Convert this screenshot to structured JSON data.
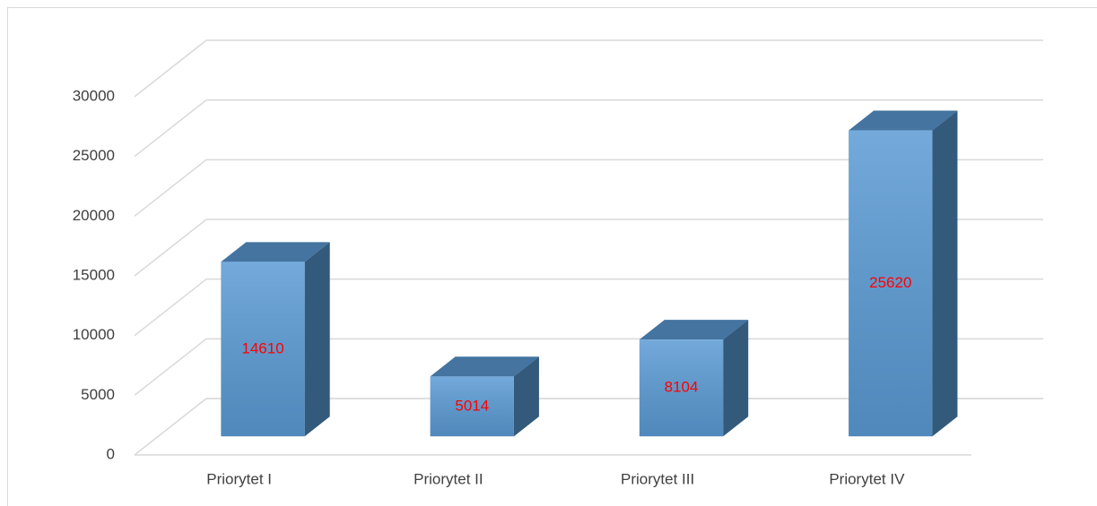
{
  "chart_data": {
    "type": "bar3d",
    "categories": [
      "Priorytet I",
      "Priorytet II",
      "Priorytet III",
      "Priorytet IV"
    ],
    "values": [
      14610,
      5014,
      8104,
      25620
    ],
    "color": "#5b9bd5",
    "label_color": "#ff0000",
    "ylim": [
      0,
      30000
    ],
    "yticks": [
      0,
      5000,
      10000,
      15000,
      20000,
      25000,
      30000
    ],
    "grid": true
  }
}
